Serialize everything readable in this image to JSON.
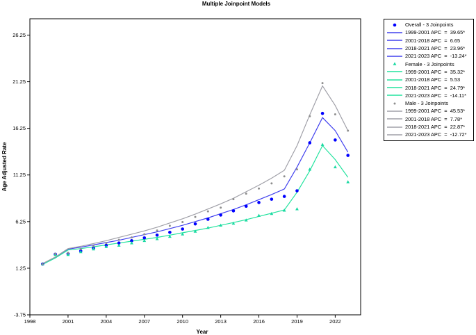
{
  "chart_data": {
    "type": "line",
    "title": "Multiple Joinpoint Models",
    "xlabel": "Year",
    "ylabel": "Age Adjusted Rate",
    "xlim": [
      1998,
      2024
    ],
    "ylim": [
      -3.75,
      28
    ],
    "x_ticks": [
      "1998",
      "2001",
      "2004",
      "2007",
      "2010",
      "2013",
      "2016",
      "2019",
      "2022"
    ],
    "y_ticks": [
      "26.25",
      "21.25",
      "16.25",
      "11.25",
      "6.25",
      "1.25",
      "-3.75"
    ],
    "grid": false,
    "legend_position": "right",
    "series": [
      {
        "name": "Overall - 3 Joinpoints",
        "color": "#0000ff",
        "fit_color": "#4040ee",
        "marker": "circle",
        "x": [
          1999,
          2000,
          2001,
          2002,
          2003,
          2004,
          2005,
          2006,
          2007,
          2008,
          2009,
          2010,
          2011,
          2012,
          2013,
          2014,
          2015,
          2016,
          2017,
          2018,
          2019,
          2020,
          2021,
          2022,
          2023
        ],
        "observed": [
          1.7,
          2.75,
          2.8,
          3.1,
          3.4,
          3.7,
          3.95,
          4.2,
          4.5,
          4.8,
          5.1,
          5.45,
          6.0,
          6.5,
          6.95,
          7.4,
          7.9,
          8.3,
          8.65,
          8.95,
          9.55,
          14.7,
          17.85,
          15.0,
          13.35
        ],
        "fitted": [
          1.7,
          2.4,
          3.3,
          3.5,
          3.75,
          4.0,
          4.25,
          4.55,
          4.85,
          5.15,
          5.5,
          5.85,
          6.25,
          6.65,
          7.1,
          7.55,
          8.05,
          8.6,
          9.15,
          9.75,
          12.1,
          14.7,
          17.4,
          16.0,
          13.7
        ],
        "apc": [
          {
            "segment": "1999-2001 APC",
            "value": "39.65*"
          },
          {
            "segment": "2001-2018 APC",
            "value": "6.65"
          },
          {
            "segment": "2018-2021 APC",
            "value": "23.96*"
          },
          {
            "segment": "2021-2023 APC",
            "value": "-13.24*"
          }
        ]
      },
      {
        "name": "Female - 3 Joinpoints",
        "color": "#19d9a2",
        "fit_color": "#22e39e",
        "marker": "triangle",
        "x": [
          1999,
          2000,
          2001,
          2002,
          2003,
          2004,
          2005,
          2006,
          2007,
          2008,
          2009,
          2010,
          2011,
          2012,
          2013,
          2014,
          2015,
          2016,
          2017,
          2018,
          2019,
          2020,
          2021,
          2022,
          2023
        ],
        "observed": [
          1.7,
          2.7,
          2.7,
          3.0,
          3.3,
          3.55,
          3.7,
          3.95,
          4.2,
          4.4,
          4.65,
          4.9,
          5.2,
          5.6,
          5.85,
          6.05,
          6.4,
          6.9,
          7.1,
          7.45,
          7.6,
          11.85,
          14.5,
          12.1,
          10.5
        ],
        "fitted": [
          1.65,
          2.35,
          3.2,
          3.35,
          3.55,
          3.75,
          3.95,
          4.15,
          4.35,
          4.55,
          4.8,
          5.05,
          5.3,
          5.55,
          5.85,
          6.15,
          6.45,
          6.8,
          7.15,
          7.5,
          9.4,
          11.7,
          14.4,
          12.9,
          11.0
        ],
        "apc": [
          {
            "segment": "1999-2001 APC",
            "value": "35.32*"
          },
          {
            "segment": "2001-2018 APC",
            "value": "5.53"
          },
          {
            "segment": "2018-2021 APC",
            "value": "24.79*"
          },
          {
            "segment": "2021-2023 APC",
            "value": "-14.11*"
          }
        ]
      },
      {
        "name": "Male - 3 Joinpoints",
        "color": "#8e8e8e",
        "fit_color": "#a0a0a8",
        "marker": "dot",
        "x": [
          1999,
          2000,
          2001,
          2002,
          2003,
          2004,
          2005,
          2006,
          2007,
          2008,
          2009,
          2010,
          2011,
          2012,
          2013,
          2014,
          2015,
          2016,
          2017,
          2018,
          2019,
          2020,
          2021,
          2022,
          2023
        ],
        "observed": [
          1.7,
          2.8,
          2.9,
          3.3,
          3.65,
          3.95,
          4.3,
          4.55,
          4.9,
          5.3,
          5.8,
          6.2,
          6.75,
          7.35,
          7.75,
          8.65,
          9.25,
          9.8,
          10.35,
          11.1,
          11.85,
          17.55,
          21.1,
          17.75,
          16.0
        ],
        "fitted": [
          1.75,
          2.45,
          3.35,
          3.6,
          3.9,
          4.2,
          4.55,
          4.9,
          5.25,
          5.65,
          6.1,
          6.55,
          7.05,
          7.6,
          8.15,
          8.75,
          9.45,
          10.15,
          10.9,
          11.75,
          14.4,
          17.7,
          20.8,
          18.7,
          16.0
        ],
        "apc": [
          {
            "segment": "1999-2001 APC",
            "value": "45.53*"
          },
          {
            "segment": "2001-2018 APC",
            "value": "7.78*"
          },
          {
            "segment": "2018-2021 APC",
            "value": "22.87*"
          },
          {
            "segment": "2021-2023 APC",
            "value": "-12.72*"
          }
        ]
      }
    ]
  }
}
